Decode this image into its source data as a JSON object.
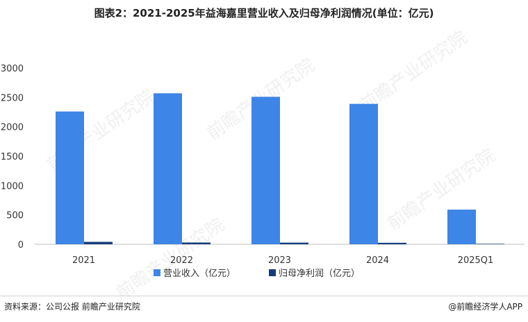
{
  "title": "图表2：2021-2025年益海嘉里营业收入及归母净利润情况(单位：亿元)",
  "footer": {
    "source": "资料来源：公司公报 前瞻产业研究院",
    "brand": "@前瞻经济学人APP"
  },
  "watermark": "前瞻产业研究院",
  "chart_data": {
    "type": "bar",
    "categories": [
      "2021",
      "2022",
      "2023",
      "2024",
      "2025Q1"
    ],
    "series": [
      {
        "name": "营业收入（亿元）",
        "values": [
          2260,
          2570,
          2510,
          2390,
          590
        ],
        "color": "#3d85e6"
      },
      {
        "name": "归母净利润（亿元）",
        "values": [
          41,
          30,
          28,
          25,
          8
        ],
        "color": "#173c7a"
      }
    ],
    "ylim": [
      0,
      3000
    ],
    "yticks": [
      0,
      500,
      1000,
      1500,
      2000,
      2500,
      3000
    ],
    "legend_position": "bottom",
    "grid": false
  }
}
